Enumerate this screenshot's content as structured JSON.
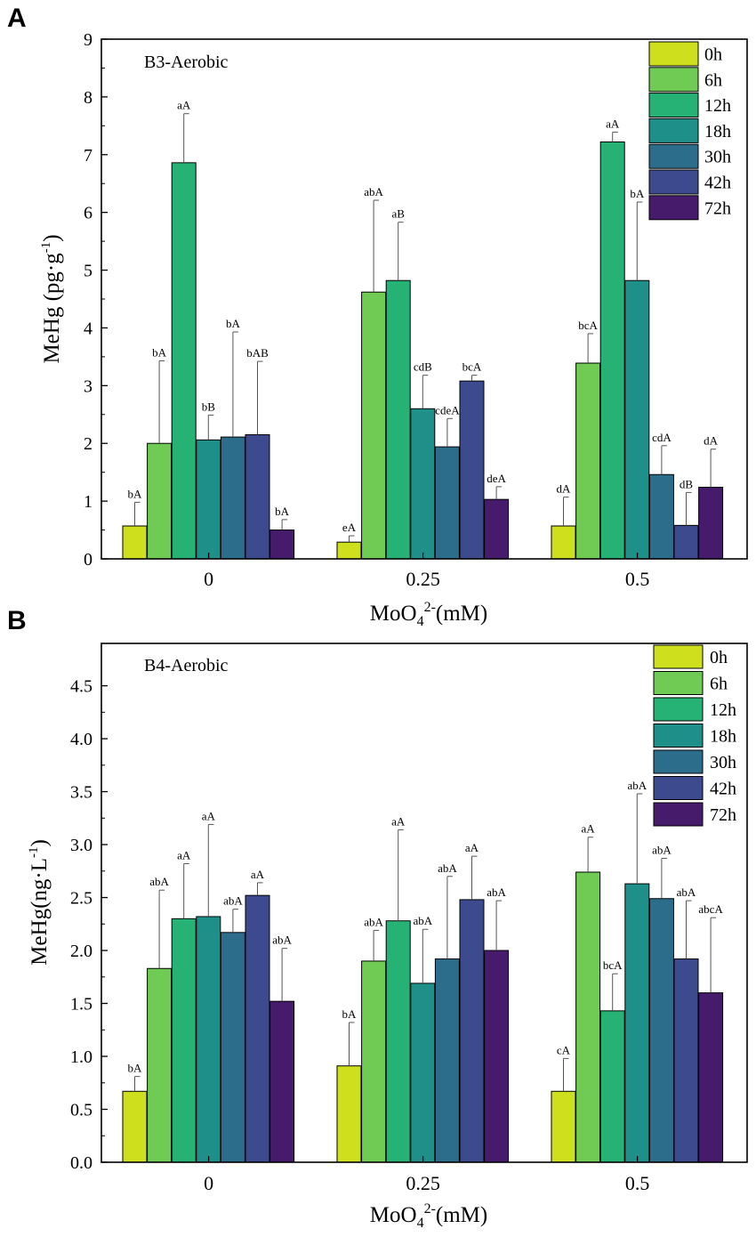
{
  "series_colors": [
    "#cddf1d",
    "#6fcb53",
    "#26b275",
    "#1f8f8a",
    "#2c6d8c",
    "#3e4a8e",
    "#461b6b"
  ],
  "chart_data": [
    {
      "type": "bar",
      "panel_letter": "A",
      "title": "B3-Aerobic",
      "xlabel_base": "MoO",
      "xlabel_sub": "4",
      "xlabel_sup": "2-",
      "xlabel_tail": "(mM)",
      "ylabel_base": "MeHg (pg·g",
      "ylabel_sup": "-1",
      "ylabel_tail": ")",
      "ylim": [
        0,
        9
      ],
      "yticks": [
        "0",
        "1",
        "2",
        "3",
        "4",
        "5",
        "6",
        "7",
        "8",
        "9"
      ],
      "categories": [
        "0",
        "0.25",
        "0.5"
      ],
      "legend_position": "top-right",
      "series": [
        {
          "name": "0h",
          "values": [
            0.57,
            0.29,
            0.57
          ],
          "errors": [
            0.41,
            0.11,
            0.5
          ],
          "labels": [
            "bA",
            "eA",
            "dA"
          ]
        },
        {
          "name": "6h",
          "values": [
            2.0,
            4.62,
            3.39
          ],
          "errors": [
            1.43,
            1.59,
            0.51
          ],
          "labels": [
            "bA",
            "abA",
            "bcA"
          ]
        },
        {
          "name": "12h",
          "values": [
            6.86,
            4.82,
            7.22
          ],
          "errors": [
            0.85,
            1.01,
            0.17
          ],
          "labels": [
            "aA",
            "aB",
            "aA"
          ]
        },
        {
          "name": "18h",
          "values": [
            2.06,
            2.6,
            4.82
          ],
          "errors": [
            0.43,
            0.58,
            1.36
          ],
          "labels": [
            "bB",
            "cdB",
            "bA"
          ]
        },
        {
          "name": "30h",
          "values": [
            2.11,
            1.94,
            1.46
          ],
          "errors": [
            1.82,
            0.49,
            0.5
          ],
          "labels": [
            "bA",
            "cdeA",
            "cdA"
          ]
        },
        {
          "name": "42h",
          "values": [
            2.15,
            3.08,
            0.58
          ],
          "errors": [
            1.27,
            0.1,
            0.57
          ],
          "labels": [
            "bAB",
            "bcA",
            "dB"
          ]
        },
        {
          "name": "72h",
          "values": [
            0.5,
            1.03,
            1.24
          ],
          "errors": [
            0.18,
            0.22,
            0.66
          ],
          "labels": [
            "bA",
            "deA",
            "dA"
          ]
        }
      ]
    },
    {
      "type": "bar",
      "panel_letter": "B",
      "title": "B4-Aerobic",
      "xlabel_base": "MoO",
      "xlabel_sub": "4",
      "xlabel_sup": "2-",
      "xlabel_tail": "(mM)",
      "ylabel_base": "MeHg(ng·L",
      "ylabel_sup": "-1",
      "ylabel_tail": ")",
      "ylim": [
        0,
        4.9
      ],
      "yticks": [
        "0.0",
        "0.5",
        "1.0",
        "1.5",
        "2.0",
        "2.5",
        "3.0",
        "3.5",
        "4.0",
        "4.5"
      ],
      "categories": [
        "0",
        "0.25",
        "0.5"
      ],
      "legend_position": "top-right",
      "series": [
        {
          "name": "0h",
          "values": [
            0.67,
            0.91,
            0.67
          ],
          "errors": [
            0.14,
            0.41,
            0.31
          ],
          "labels": [
            "bA",
            "bA",
            "cA"
          ]
        },
        {
          "name": "6h",
          "values": [
            1.83,
            1.9,
            2.74
          ],
          "errors": [
            0.74,
            0.29,
            0.33
          ],
          "labels": [
            "abA",
            "abA",
            "aA"
          ]
        },
        {
          "name": "12h",
          "values": [
            2.3,
            2.28,
            1.43
          ],
          "errors": [
            0.52,
            0.86,
            0.35
          ],
          "labels": [
            "aA",
            "aA",
            "bcA"
          ]
        },
        {
          "name": "18h",
          "values": [
            2.32,
            1.69,
            2.63
          ],
          "errors": [
            0.87,
            0.51,
            0.85
          ],
          "labels": [
            "aA",
            "abA",
            "abA"
          ]
        },
        {
          "name": "30h",
          "values": [
            2.17,
            1.92,
            2.49
          ],
          "errors": [
            0.22,
            0.78,
            0.38
          ],
          "labels": [
            "abA",
            "abA",
            "abA"
          ]
        },
        {
          "name": "42h",
          "values": [
            2.52,
            2.48,
            1.92
          ],
          "errors": [
            0.12,
            0.41,
            0.55
          ],
          "labels": [
            "aA",
            "aA",
            "abA"
          ]
        },
        {
          "name": "72h",
          "values": [
            1.52,
            2.0,
            1.6
          ],
          "errors": [
            0.5,
            0.47,
            0.71
          ],
          "labels": [
            "abA",
            "abA",
            "abcA"
          ]
        }
      ]
    }
  ]
}
